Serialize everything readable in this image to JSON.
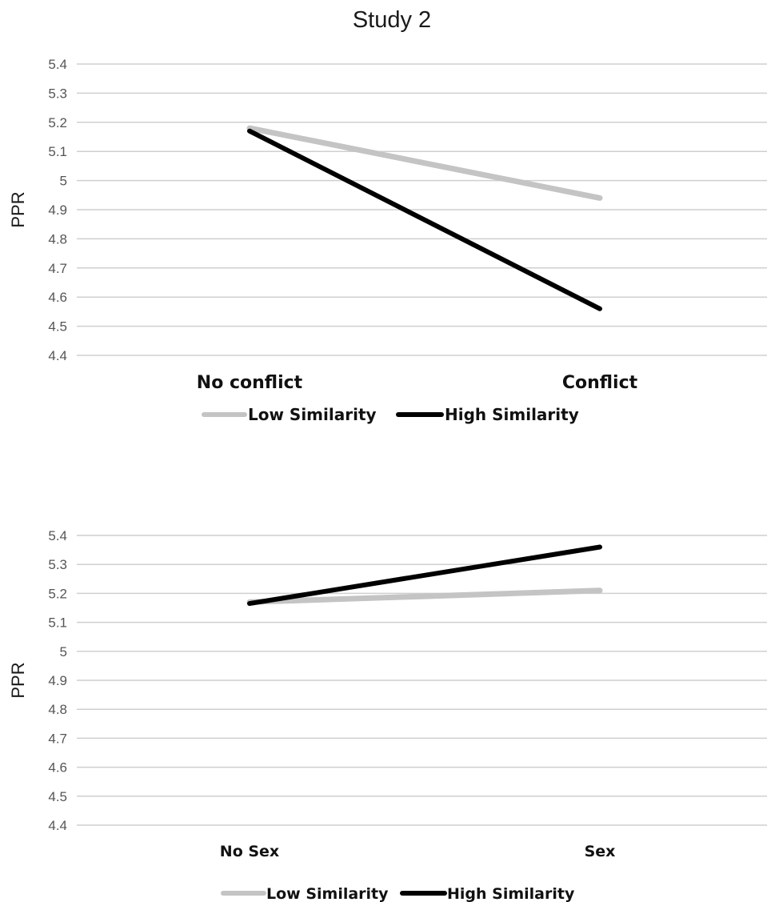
{
  "chart_data": [
    {
      "type": "line",
      "title": "Study 2",
      "xlabel": "",
      "ylabel": "PPR",
      "categories": [
        "No conflict",
        "Conflict"
      ],
      "y_ticks": [
        "5.4",
        "5.3",
        "5.2",
        "5.1",
        "5",
        "4.9",
        "4.8",
        "4.7",
        "4.6",
        "4.5",
        "4.4"
      ],
      "ylim": [
        4.4,
        5.4
      ],
      "grid": true,
      "legend_placement": "bottom",
      "series": [
        {
          "name": "Low Similarity",
          "values": [
            5.18,
            4.94
          ],
          "color": "#c4c4c4"
        },
        {
          "name": "High Similarity",
          "values": [
            5.17,
            4.56
          ],
          "color": "#000000"
        }
      ]
    },
    {
      "type": "line",
      "title": "",
      "xlabel": "",
      "ylabel": "PPR",
      "categories": [
        "No Sex",
        "Sex"
      ],
      "y_ticks": [
        "5.4",
        "5.3",
        "5.2",
        "5.1",
        "5",
        "4.9",
        "4.8",
        "4.7",
        "4.6",
        "4.5",
        "4.4"
      ],
      "ylim": [
        4.4,
        5.4
      ],
      "grid": true,
      "legend_placement": "bottom",
      "series": [
        {
          "name": "Low Similarity",
          "values": [
            5.17,
            5.21
          ],
          "color": "#c4c4c4"
        },
        {
          "name": "High Similarity",
          "values": [
            5.165,
            5.36
          ],
          "color": "#000000"
        }
      ]
    }
  ]
}
